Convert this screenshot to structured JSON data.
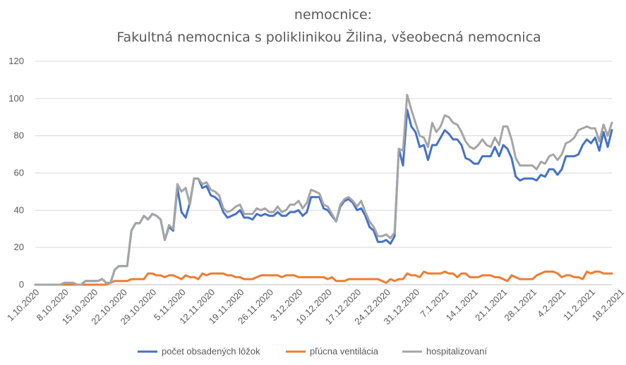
{
  "chart_data": {
    "type": "line",
    "title_line1": "nemocnice:",
    "title_line2": "Fakultná nemocnica s poliklinikou Žilina, všeobecná nemocnica",
    "xlabel": "",
    "ylabel": "",
    "ylim": [
      0,
      120
    ],
    "yticks": [
      "0",
      "20",
      "40",
      "60",
      "80",
      "100",
      "120"
    ],
    "grid": true,
    "legend_position": "bottom",
    "start_date": "1.10.2020",
    "x_tick_labels": [
      "1.10.2020",
      "8.10.2020",
      "15.10.2020",
      "22.10.2020",
      "29.10.2020",
      "5.11.2020",
      "12.11.2020",
      "19.11.2020",
      "26.11.2020",
      "3.12.2020",
      "10.12.2020",
      "17.12.2020",
      "24.12.2020",
      "31.12.2020",
      "7.1.2021",
      "14.1.2021",
      "21.1.2021",
      "28.1.2021",
      "4.2.2021",
      "11.2.2021",
      "18.2.2021"
    ],
    "series": [
      {
        "name": "počet obsadených lôžok",
        "color": "#4472c4",
        "values": [
          0,
          0,
          0,
          0,
          0,
          0,
          0,
          1,
          1,
          1,
          0,
          0,
          2,
          2,
          2,
          2,
          3,
          1,
          1,
          8,
          10,
          10,
          10,
          29,
          33,
          33,
          37,
          35,
          38,
          37,
          35,
          24,
          31,
          29,
          52,
          39,
          36,
          44,
          57,
          57,
          52,
          53,
          48,
          47,
          45,
          39,
          36,
          37,
          38,
          40,
          36,
          36,
          35,
          38,
          37,
          38,
          37,
          37,
          39,
          37,
          37,
          39,
          39,
          40,
          37,
          39,
          47,
          47,
          47,
          41,
          40,
          37,
          34,
          42,
          45,
          46,
          44,
          40,
          41,
          37,
          31,
          29,
          23,
          23,
          24,
          22,
          26,
          73,
          64,
          94,
          85,
          82,
          74,
          75,
          67,
          75,
          75,
          79,
          83,
          81,
          78,
          78,
          75,
          68,
          67,
          65,
          65,
          69,
          69,
          69,
          74,
          69,
          75,
          73,
          68,
          58,
          56,
          57,
          57,
          57,
          56,
          59,
          58,
          62,
          62,
          59,
          62,
          69,
          69,
          69,
          70,
          75,
          78,
          76,
          79,
          72,
          82,
          74,
          83
        ]
      },
      {
        "name": "pľúcna ventilácia",
        "color": "#ed7d31",
        "values": [
          0,
          0,
          0,
          0,
          0,
          0,
          0,
          0,
          0,
          0,
          0,
          0,
          0,
          0,
          0,
          0,
          0,
          0,
          1,
          2,
          2,
          2,
          2,
          3,
          3,
          3,
          3,
          6,
          6,
          5,
          5,
          4,
          5,
          5,
          4,
          3,
          5,
          4,
          4,
          3,
          6,
          5,
          6,
          6,
          6,
          6,
          5,
          5,
          4,
          4,
          3,
          3,
          3,
          4,
          5,
          5,
          5,
          5,
          5,
          4,
          5,
          5,
          5,
          4,
          4,
          4,
          4,
          4,
          4,
          4,
          3,
          4,
          2,
          2,
          2,
          3,
          3,
          3,
          3,
          3,
          3,
          3,
          3,
          2,
          1,
          3,
          2,
          3,
          3,
          6,
          5,
          5,
          4,
          7,
          6,
          6,
          6,
          6,
          7,
          6,
          6,
          4,
          6,
          6,
          4,
          4,
          4,
          5,
          5,
          5,
          4,
          4,
          3,
          2,
          5,
          4,
          3,
          3,
          3,
          3,
          5,
          6,
          7,
          7,
          7,
          6,
          4,
          5,
          5,
          4,
          4,
          3,
          7,
          6,
          7,
          7,
          6,
          6,
          6
        ]
      },
      {
        "name": "hospitalizovaní",
        "color": "#a5a5a5",
        "values": [
          0,
          0,
          0,
          0,
          0,
          0,
          0,
          1,
          1,
          1,
          0,
          0,
          2,
          2,
          2,
          2,
          3,
          1,
          1,
          8,
          10,
          10,
          10,
          29,
          33,
          33,
          37,
          35,
          38,
          37,
          35,
          24,
          32,
          30,
          54,
          50,
          52,
          43,
          57,
          57,
          54,
          55,
          51,
          50,
          48,
          41,
          39,
          40,
          42,
          43,
          38,
          38,
          38,
          41,
          40,
          41,
          39,
          39,
          42,
          39,
          40,
          43,
          43,
          45,
          41,
          44,
          51,
          50,
          49,
          43,
          42,
          38,
          34,
          43,
          46,
          47,
          45,
          42,
          45,
          39,
          34,
          31,
          26,
          26,
          27,
          25,
          28,
          73,
          72,
          102,
          94,
          87,
          80,
          79,
          74,
          87,
          82,
          85,
          91,
          90,
          87,
          86,
          82,
          77,
          74,
          73,
          75,
          78,
          75,
          74,
          79,
          75,
          85,
          85,
          78,
          68,
          64,
          64,
          64,
          64,
          62,
          66,
          65,
          69,
          70,
          67,
          70,
          76,
          77,
          79,
          83,
          84,
          85,
          84,
          84,
          77,
          86,
          80,
          87
        ]
      }
    ]
  }
}
